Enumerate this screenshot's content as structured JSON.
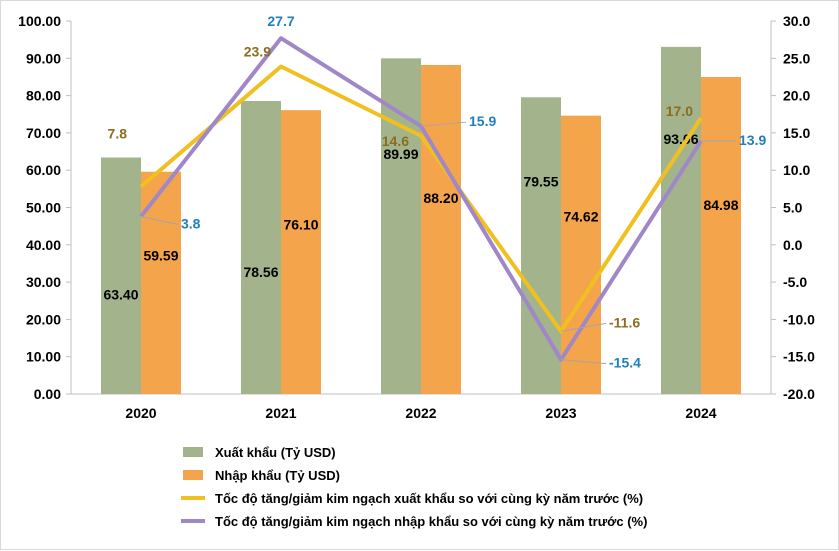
{
  "chart_data": {
    "type": "bar",
    "categories": [
      "2020",
      "2021",
      "2022",
      "2023",
      "2024"
    ],
    "series": [
      {
        "name": "Xuất khẩu (Tỷ USD)",
        "kind": "bar",
        "axis": "left",
        "color": "#a3b48c",
        "values": [
          63.4,
          78.56,
          89.99,
          79.55,
          93.06
        ],
        "labels": [
          "63.40",
          "78.56",
          "89.99",
          "79.55",
          "93.06"
        ]
      },
      {
        "name": "Nhập khẩu (Tỷ USD)",
        "kind": "bar",
        "axis": "left",
        "color": "#f4a44a",
        "values": [
          59.59,
          76.1,
          88.2,
          74.62,
          84.98
        ],
        "labels": [
          "59.59",
          "76.10",
          "88.20",
          "74.62",
          "84.98"
        ]
      },
      {
        "name": "Tốc độ tăng/giảm kim ngạch xuất khẩu so với cùng kỳ năm trước (%)",
        "kind": "line",
        "axis": "right",
        "color": "#f0c020",
        "label_color": "#8a6d1e",
        "values": [
          7.8,
          23.9,
          14.6,
          -11.6,
          17.0
        ],
        "labels": [
          "7.8",
          "23.9",
          "14.6",
          "-11.6",
          "17.0"
        ]
      },
      {
        "name": "Tốc độ tăng/giảm kim ngạch nhập khẩu so với cùng kỳ năm trước (%)",
        "kind": "line",
        "axis": "right",
        "color": "#a087c8",
        "label_color": "#1f7fc1",
        "values": [
          3.8,
          27.7,
          15.9,
          -15.4,
          13.9
        ],
        "labels": [
          "3.8",
          "27.7",
          "15.9",
          "-15.4",
          "13.9"
        ]
      }
    ],
    "y_left": {
      "min": 0,
      "max": 100,
      "step": 10,
      "ticks": [
        "0.00",
        "10.00",
        "20.00",
        "30.00",
        "40.00",
        "50.00",
        "60.00",
        "70.00",
        "80.00",
        "90.00",
        "100.00"
      ]
    },
    "y_right": {
      "min": -20,
      "max": 30,
      "step": 5,
      "ticks": [
        "-20.0",
        "-15.0",
        "-10.0",
        "-5.0",
        "0.0",
        "5.0",
        "10.0",
        "15.0",
        "20.0",
        "25.0",
        "30.0"
      ]
    },
    "grid": false,
    "legend_position": "bottom-left"
  }
}
